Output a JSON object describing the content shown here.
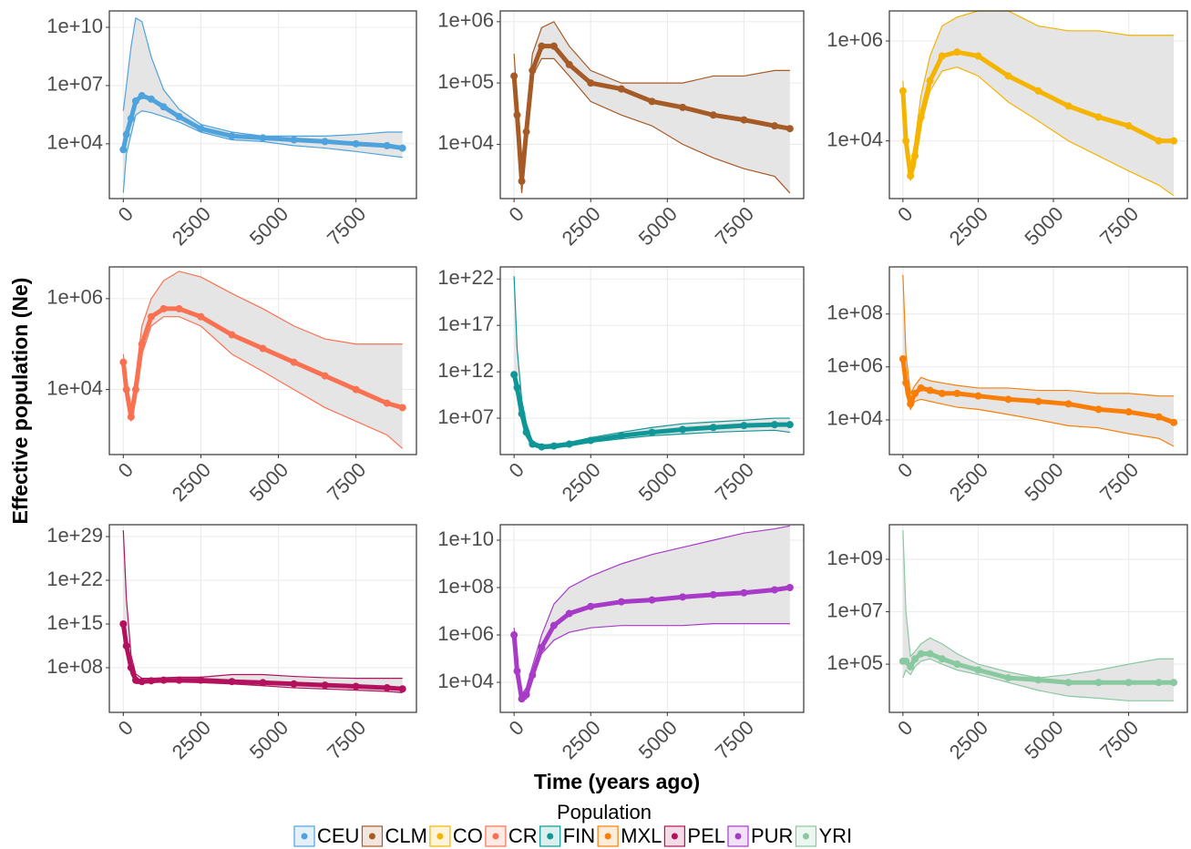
{
  "xlabel": "Time (years ago)",
  "ylabel": "Effective population (Ne)",
  "legend_title": "Population",
  "chart_data": [
    {
      "type": "line",
      "log_y": true,
      "grid": true,
      "xlim": [
        -450,
        9450
      ],
      "xticks": [
        0,
        2500,
        5000,
        7500
      ],
      "ylim": [
        15,
        70000000000.0
      ],
      "yticks": [
        {
          "value": 10000.0,
          "label": "1e+04"
        },
        {
          "value": 10000000.0,
          "label": "1e+07"
        },
        {
          "value": 10000000000.0,
          "label": "1e+10"
        }
      ],
      "x": [
        0,
        100,
        250,
        400,
        600,
        900,
        1300,
        1800,
        2500,
        3500,
        4500,
        5500,
        6500,
        7500,
        8500,
        9000
      ],
      "series": [
        {
          "name": "CEU",
          "color": "#4ea3dd",
          "values": [
            5000.0,
            30000.0,
            200000.0,
            1600000.0,
            3000000.0,
            2000000.0,
            800000.0,
            250000.0,
            60000.0,
            25000.0,
            20000.0,
            16000.0,
            13000.0,
            10000.0,
            8000.0,
            6000.0
          ],
          "lower": [
            30,
            3000.0,
            30000.0,
            300000.0,
            500000.0,
            400000.0,
            250000.0,
            130000.0,
            40000.0,
            16000.0,
            13000.0,
            8000.0,
            6000.0,
            4000.0,
            2500.0,
            2000.0
          ],
          "upper": [
            500000.0,
            10000000.0,
            1000000000.0,
            30000000000.0,
            20000000000.0,
            300000000.0,
            6000000.0,
            600000.0,
            100000.0,
            40000.0,
            25000.0,
            25000.0,
            25000.0,
            30000.0,
            40000.0,
            40000.0
          ]
        }
      ]
    },
    {
      "type": "line",
      "log_y": true,
      "grid": true,
      "xlim": [
        -450,
        9450
      ],
      "xticks": [
        0,
        2500,
        5000,
        7500
      ],
      "ylim": [
        1300,
        1500000.0
      ],
      "yticks": [
        {
          "value": 10000.0,
          "label": "1e+04"
        },
        {
          "value": 100000.0,
          "label": "1e+05"
        },
        {
          "value": 1000000.0,
          "label": "1e+06"
        }
      ],
      "x": [
        0,
        100,
        250,
        400,
        600,
        900,
        1300,
        1800,
        2500,
        3500,
        4500,
        5500,
        6500,
        7500,
        8500,
        9000
      ],
      "series": [
        {
          "name": "CLM",
          "color": "#a65a26",
          "values": [
            130000.0,
            30000.0,
            2500.0,
            16000.0,
            160000.0,
            400000.0,
            400000.0,
            200000.0,
            100000.0,
            80000.0,
            50000.0,
            40000.0,
            30000.0,
            25000.0,
            20000.0,
            18000.0
          ],
          "lower": [
            100000.0,
            20000.0,
            1600.0,
            10000.0,
            130000.0,
            250000.0,
            250000.0,
            130000.0,
            50000.0,
            30000.0,
            20000.0,
            10000.0,
            6000.0,
            4000.0,
            3000.0,
            1600.0
          ],
          "upper": [
            300000.0,
            50000.0,
            4000.0,
            30000.0,
            300000.0,
            800000.0,
            1000000.0,
            400000.0,
            160000.0,
            100000.0,
            100000.0,
            100000.0,
            130000.0,
            130000.0,
            160000.0,
            160000.0
          ]
        }
      ]
    },
    {
      "type": "line",
      "log_y": true,
      "grid": true,
      "xlim": [
        -450,
        9450
      ],
      "xticks": [
        0,
        2500,
        5000,
        7500
      ],
      "ylim": [
        700,
        4000000.0
      ],
      "yticks": [
        {
          "value": 10000.0,
          "label": "1e+04"
        },
        {
          "value": 1000000.0,
          "label": "1e+06"
        }
      ],
      "x": [
        0,
        100,
        250,
        400,
        600,
        900,
        1300,
        1800,
        2500,
        3500,
        4500,
        5500,
        6500,
        7500,
        8500,
        9000
      ],
      "series": [
        {
          "name": "CO",
          "color": "#f5b400",
          "values": [
            100000.0,
            10000.0,
            2000.0,
            5000.0,
            30000.0,
            160000.0,
            500000.0,
            600000.0,
            500000.0,
            200000.0,
            100000.0,
            50000.0,
            30000.0,
            20000.0,
            10000.0,
            10000.0
          ],
          "lower": [
            60000.0,
            6000.0,
            1600.0,
            3000.0,
            20000.0,
            100000.0,
            250000.0,
            300000.0,
            200000.0,
            60000.0,
            25000.0,
            10000.0,
            5000.0,
            2500.0,
            1300.0,
            800
          ],
          "upper": [
            160000.0,
            16000.0,
            3000.0,
            10000.0,
            80000.0,
            500000.0,
            2000000.0,
            3000000.0,
            4000000.0,
            4000000.0,
            2000000.0,
            1600000.0,
            1600000.0,
            1300000.0,
            1300000.0,
            1300000.0
          ]
        }
      ]
    },
    {
      "type": "line",
      "log_y": true,
      "grid": true,
      "xlim": [
        -450,
        9450
      ],
      "xticks": [
        0,
        2500,
        5000,
        7500
      ],
      "ylim": [
        370,
        5000000.0
      ],
      "yticks": [
        {
          "value": 10000.0,
          "label": "1e+04"
        },
        {
          "value": 1000000.0,
          "label": "1e+06"
        }
      ],
      "x": [
        0,
        100,
        250,
        400,
        600,
        900,
        1300,
        1800,
        2500,
        3500,
        4500,
        5500,
        6500,
        7500,
        8500,
        9000
      ],
      "series": [
        {
          "name": "CR",
          "color": "#fa7151",
          "values": [
            40000.0,
            10000.0,
            2500.0,
            10000.0,
            100000.0,
            400000.0,
            600000.0,
            600000.0,
            400000.0,
            160000.0,
            80000.0,
            40000.0,
            20000.0,
            10000.0,
            5000.0,
            4000.0
          ],
          "lower": [
            25000.0,
            6000.0,
            2000.0,
            6000.0,
            60000.0,
            250000.0,
            400000.0,
            400000.0,
            250000.0,
            60000.0,
            25000.0,
            10000.0,
            4000.0,
            2000.0,
            1000.0,
            500
          ],
          "upper": [
            60000.0,
            16000.0,
            4000.0,
            20000.0,
            250000.0,
            1000000.0,
            2500000.0,
            4000000.0,
            3000000.0,
            1300000.0,
            600000.0,
            250000.0,
            130000.0,
            100000.0,
            100000.0,
            100000.0
          ]
        }
      ]
    },
    {
      "type": "line",
      "log_y": true,
      "grid": true,
      "xlim": [
        -450,
        9450
      ],
      "xticks": [
        0,
        2500,
        5000,
        7500
      ],
      "ylim": [
        1200,
        2e+23
      ],
      "yticks": [
        {
          "value": 10000000.0,
          "label": "1e+07"
        },
        {
          "value": 1000000000000.0,
          "label": "1e+12"
        },
        {
          "value": 1e+17,
          "label": "1e+17"
        },
        {
          "value": 1e+22,
          "label": "1e+22"
        }
      ],
      "x": [
        0,
        100,
        250,
        400,
        600,
        900,
        1300,
        1800,
        2500,
        3500,
        4500,
        5500,
        6500,
        7500,
        8500,
        9000
      ],
      "series": [
        {
          "name": "FIN",
          "color": "#0f9696",
          "values": [
            500000000000.0,
            20000000000.0,
            30000000.0,
            300000.0,
            16000.0,
            8000.0,
            10000.0,
            16000.0,
            40000.0,
            130000.0,
            300000.0,
            600000.0,
            1000000.0,
            1600000.0,
            2000000.0,
            2000000.0
          ],
          "lower": [
            30000000000.0,
            3000000000.0,
            10000000.0,
            100000.0,
            10000.0,
            5000.0,
            6000.0,
            10000.0,
            25000.0,
            60000.0,
            130000.0,
            200000.0,
            300000.0,
            400000.0,
            500000.0,
            300000.0
          ],
          "upper": [
            2e+22,
            300000000000000.0,
            1000000000.0,
            3000000.0,
            30000.0,
            13000.0,
            16000.0,
            25000.0,
            80000.0,
            300000.0,
            1000000.0,
            2500000.0,
            4000000.0,
            6000000.0,
            10000000.0,
            10000000.0
          ]
        }
      ]
    },
    {
      "type": "line",
      "log_y": true,
      "grid": true,
      "xlim": [
        -450,
        9450
      ],
      "xticks": [
        0,
        2500,
        5000,
        7500
      ],
      "ylim": [
        490,
        6000000000.0
      ],
      "yticks": [
        {
          "value": 10000.0,
          "label": "1e+04"
        },
        {
          "value": 1000000.0,
          "label": "1e+06"
        },
        {
          "value": 100000000.0,
          "label": "1e+08"
        }
      ],
      "x": [
        0,
        100,
        250,
        400,
        600,
        900,
        1300,
        1800,
        2500,
        3500,
        4500,
        5500,
        6500,
        7500,
        8500,
        9000
      ],
      "series": [
        {
          "name": "MXL",
          "color": "#f97e08",
          "values": [
            2000000.0,
            250000.0,
            40000.0,
            100000.0,
            160000.0,
            130000.0,
            100000.0,
            100000.0,
            80000.0,
            60000.0,
            50000.0,
            40000.0,
            25000.0,
            20000.0,
            13000.0,
            8000.0
          ],
          "lower": [
            1000000.0,
            100000.0,
            25000.0,
            50000.0,
            60000.0,
            50000.0,
            40000.0,
            30000.0,
            25000.0,
            16000.0,
            10000.0,
            6000.0,
            5000.0,
            3000.0,
            2000.0,
            1000.0
          ],
          "upper": [
            3000000000.0,
            3000000.0,
            100000.0,
            200000.0,
            400000.0,
            300000.0,
            250000.0,
            200000.0,
            160000.0,
            160000.0,
            130000.0,
            130000.0,
            100000.0,
            100000.0,
            80000.0,
            80000.0
          ]
        }
      ]
    },
    {
      "type": "line",
      "log_y": true,
      "grid": true,
      "xlim": [
        -450,
        9450
      ],
      "xticks": [
        0,
        2500,
        5000,
        7500
      ],
      "ylim": [
        7,
        8e+30
      ],
      "yticks": [
        {
          "value": 100000000.0,
          "label": "1e+08"
        },
        {
          "value": 1000000000000000.0,
          "label": "1e+15"
        },
        {
          "value": 1e+22,
          "label": "1e+22"
        },
        {
          "value": 1e+29,
          "label": "1e+29"
        }
      ],
      "x": [
        0,
        100,
        250,
        400,
        600,
        900,
        1300,
        1800,
        2500,
        3500,
        4500,
        5500,
        6500,
        7500,
        8500,
        9000
      ],
      "series": [
        {
          "name": "PEL",
          "color": "#b3115e",
          "values": [
            1000000000000000.0,
            300000000000.0,
            100000000.0,
            1000000.0,
            600000.0,
            800000.0,
            1000000.0,
            1000000.0,
            1000000.0,
            600000.0,
            400000.0,
            250000.0,
            160000.0,
            100000.0,
            60000.0,
            40000.0
          ],
          "lower": [
            30000000000000.0,
            30000000000.0,
            10000000.0,
            300000.0,
            300000.0,
            400000.0,
            500000.0,
            500000.0,
            400000.0,
            250000.0,
            130000.0,
            60000.0,
            40000.0,
            25000.0,
            16000.0,
            10000.0
          ],
          "upper": [
            1e+30,
            1e+19,
            10000000000.0,
            10000000.0,
            2000000.0,
            2000000.0,
            2500000.0,
            3000000.0,
            3000000.0,
            8000000.0,
            8000000.0,
            4000000.0,
            2500000.0,
            2000000.0,
            2000000.0,
            2000000.0
          ]
        }
      ]
    },
    {
      "type": "line",
      "log_y": true,
      "grid": true,
      "xlim": [
        -450,
        9450
      ],
      "xticks": [
        0,
        2500,
        5000,
        7500
      ],
      "ylim": [
        540,
        45000000000.0
      ],
      "yticks": [
        {
          "value": 10000.0,
          "label": "1e+04"
        },
        {
          "value": 1000000.0,
          "label": "1e+06"
        },
        {
          "value": 100000000.0,
          "label": "1e+08"
        },
        {
          "value": 10000000000.0,
          "label": "1e+10"
        }
      ],
      "x": [
        0,
        100,
        250,
        400,
        600,
        900,
        1300,
        1800,
        2500,
        3500,
        4500,
        5500,
        6500,
        7500,
        8500,
        9000
      ],
      "series": [
        {
          "name": "PUR",
          "color": "#a83ac8",
          "values": [
            1000000.0,
            30000.0,
            2000.0,
            3000.0,
            20000.0,
            300000.0,
            2500000.0,
            8000000.0,
            16000000.0,
            25000000.0,
            30000000.0,
            40000000.0,
            50000000.0,
            60000000.0,
            80000000.0,
            100000000.0
          ],
          "lower": [
            600000.0,
            20000.0,
            1600.0,
            2000.0,
            13000.0,
            160000.0,
            600000.0,
            1300000.0,
            2000000.0,
            2500000.0,
            2500000.0,
            2500000.0,
            3000000.0,
            3000000.0,
            3000000.0,
            3000000.0
          ],
          "upper": [
            2000000.0,
            50000.0,
            3000.0,
            6000.0,
            50000.0,
            1000000.0,
            20000000.0,
            100000000.0,
            300000000.0,
            1000000000.0,
            2500000000.0,
            5000000000.0,
            10000000000.0,
            20000000000.0,
            30000000000.0,
            40000000000.0
          ]
        }
      ]
    },
    {
      "type": "line",
      "log_y": true,
      "grid": true,
      "xlim": [
        -450,
        9450
      ],
      "xticks": [
        0,
        2500,
        5000,
        7500
      ],
      "ylim": [
        1450,
        21000000000.0
      ],
      "yticks": [
        {
          "value": 100000.0,
          "label": "1e+05"
        },
        {
          "value": 10000000.0,
          "label": "1e+07"
        },
        {
          "value": 1000000000.0,
          "label": "1e+09"
        }
      ],
      "x": [
        0,
        100,
        250,
        400,
        600,
        900,
        1300,
        1800,
        2500,
        3500,
        4500,
        5500,
        6500,
        7500,
        8500,
        9000
      ],
      "series": [
        {
          "name": "YRI",
          "color": "#88c9a0",
          "values": [
            130000.0,
            130000.0,
            80000.0,
            160000.0,
            250000.0,
            250000.0,
            160000.0,
            100000.0,
            60000.0,
            30000.0,
            25000.0,
            20000.0,
            20000.0,
            20000.0,
            20000.0,
            20000.0
          ],
          "lower": [
            30000.0,
            60000.0,
            40000.0,
            80000.0,
            130000.0,
            160000.0,
            100000.0,
            60000.0,
            40000.0,
            20000.0,
            10000.0,
            6000.0,
            5000.0,
            4000.0,
            4000.0,
            4000.0
          ],
          "upper": [
            13000000000.0,
            10000000.0,
            200000.0,
            300000.0,
            600000.0,
            1000000.0,
            600000.0,
            250000.0,
            100000.0,
            50000.0,
            30000.0,
            40000.0,
            60000.0,
            100000.0,
            160000.0,
            160000.0
          ]
        }
      ]
    }
  ]
}
